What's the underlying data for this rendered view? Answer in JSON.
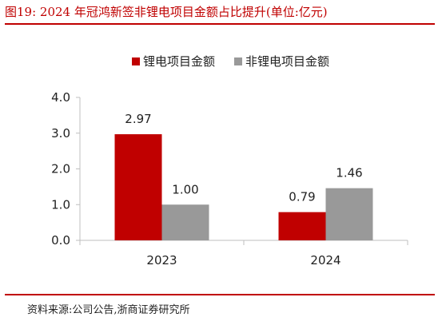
{
  "figure": {
    "title": "图19:  2024 年冠鸿新签非锂电项目金额占比提升(单位:亿元)",
    "source": "资料来源:公司公告,浙商证券研究所"
  },
  "colors": {
    "accent": "#c00000",
    "series1": "#c00000",
    "series2": "#999999"
  },
  "chart_data": {
    "type": "bar",
    "categories": [
      "2023",
      "2024"
    ],
    "series": [
      {
        "name": "锂电项目金额",
        "values": [
          2.97,
          0.79
        ],
        "labels": [
          "2.97",
          "0.79"
        ]
      },
      {
        "name": "非锂电项目金额",
        "values": [
          1.0,
          1.46
        ],
        "labels": [
          "1.00",
          "1.46"
        ]
      }
    ],
    "ylim": [
      0,
      4
    ],
    "yticks": [
      "0.0",
      "1.0",
      "2.0",
      "3.0",
      "4.0"
    ],
    "legend_position": "top",
    "grid": false
  }
}
